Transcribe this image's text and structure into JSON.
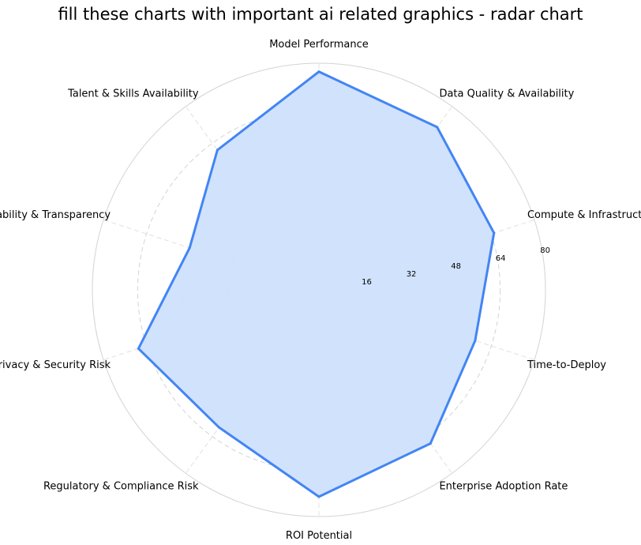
{
  "chart_data": {
    "type": "radar",
    "title": "fill these charts with important ai related graphics - radar chart",
    "categories": [
      "Model Performance",
      "Data Quality & Availability",
      "Compute & Infrastructure Cost",
      "Time-to-Deploy",
      "Enterprise Adoption Rate",
      "ROI Potential",
      "Regulatory & Compliance Risk",
      "Privacy & Security Risk",
      "Explainability & Transparency",
      "Talent & Skills Availability"
    ],
    "series": [
      {
        "values": [
          77,
          71,
          65,
          58,
          67,
          73,
          60,
          67,
          48,
          61
        ]
      }
    ],
    "rlim": [
      0,
      80
    ],
    "rticks": [
      "16",
      "32",
      "48",
      "64",
      "80"
    ],
    "grid": true,
    "colors": {
      "line": "#4285f4",
      "fill": "#cfe0fd",
      "grid": "#d3d3d3"
    }
  }
}
